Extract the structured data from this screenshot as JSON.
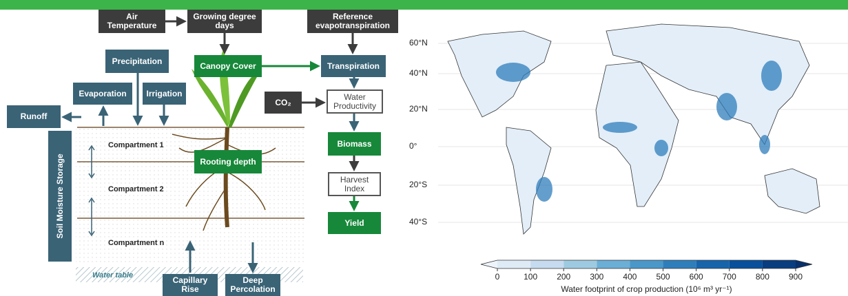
{
  "diagram": {
    "nodes": [
      {
        "label": "Air Temperature"
      },
      {
        "label": "Growing degree days"
      },
      {
        "label": "Reference evapotranspiration"
      },
      {
        "label": "Precipitation"
      },
      {
        "label": "Canopy Cover"
      },
      {
        "label": "Transpiration"
      },
      {
        "label": "Evaporation"
      },
      {
        "label": "Irrigation"
      },
      {
        "label": "Runoff"
      },
      {
        "label": "CO₂"
      },
      {
        "label": "Water Productivity"
      },
      {
        "label": "Biomass"
      },
      {
        "label": "Rooting depth"
      },
      {
        "label": "Harvest Index"
      },
      {
        "label": "Yield"
      },
      {
        "label": "Capillary Rise"
      },
      {
        "label": "Deep Percolation"
      }
    ],
    "storage_label": "Soil Moisture Storage",
    "compartments": [
      "Compartment 1",
      "Compartment 2",
      "Compartment n"
    ],
    "water_table": "Water table"
  },
  "map": {
    "lat_labels": [
      "60°N",
      "40°N",
      "20°N",
      "0°",
      "20°S",
      "40°S"
    ],
    "colorbar": {
      "lim": [
        0,
        900
      ],
      "ticks": [
        0,
        100,
        200,
        300,
        400,
        500,
        600,
        700,
        800,
        900
      ],
      "colors": [
        "#eef4fb",
        "#deebf7",
        "#c6dbef",
        "#9ecae1",
        "#6baed6",
        "#4a98c9",
        "#2f7ebc",
        "#1764ab",
        "#08509b",
        "#083d7f",
        "#08306b"
      ],
      "label": "Water footprint of crop production (10⁶ m³ yr⁻¹)"
    }
  }
}
